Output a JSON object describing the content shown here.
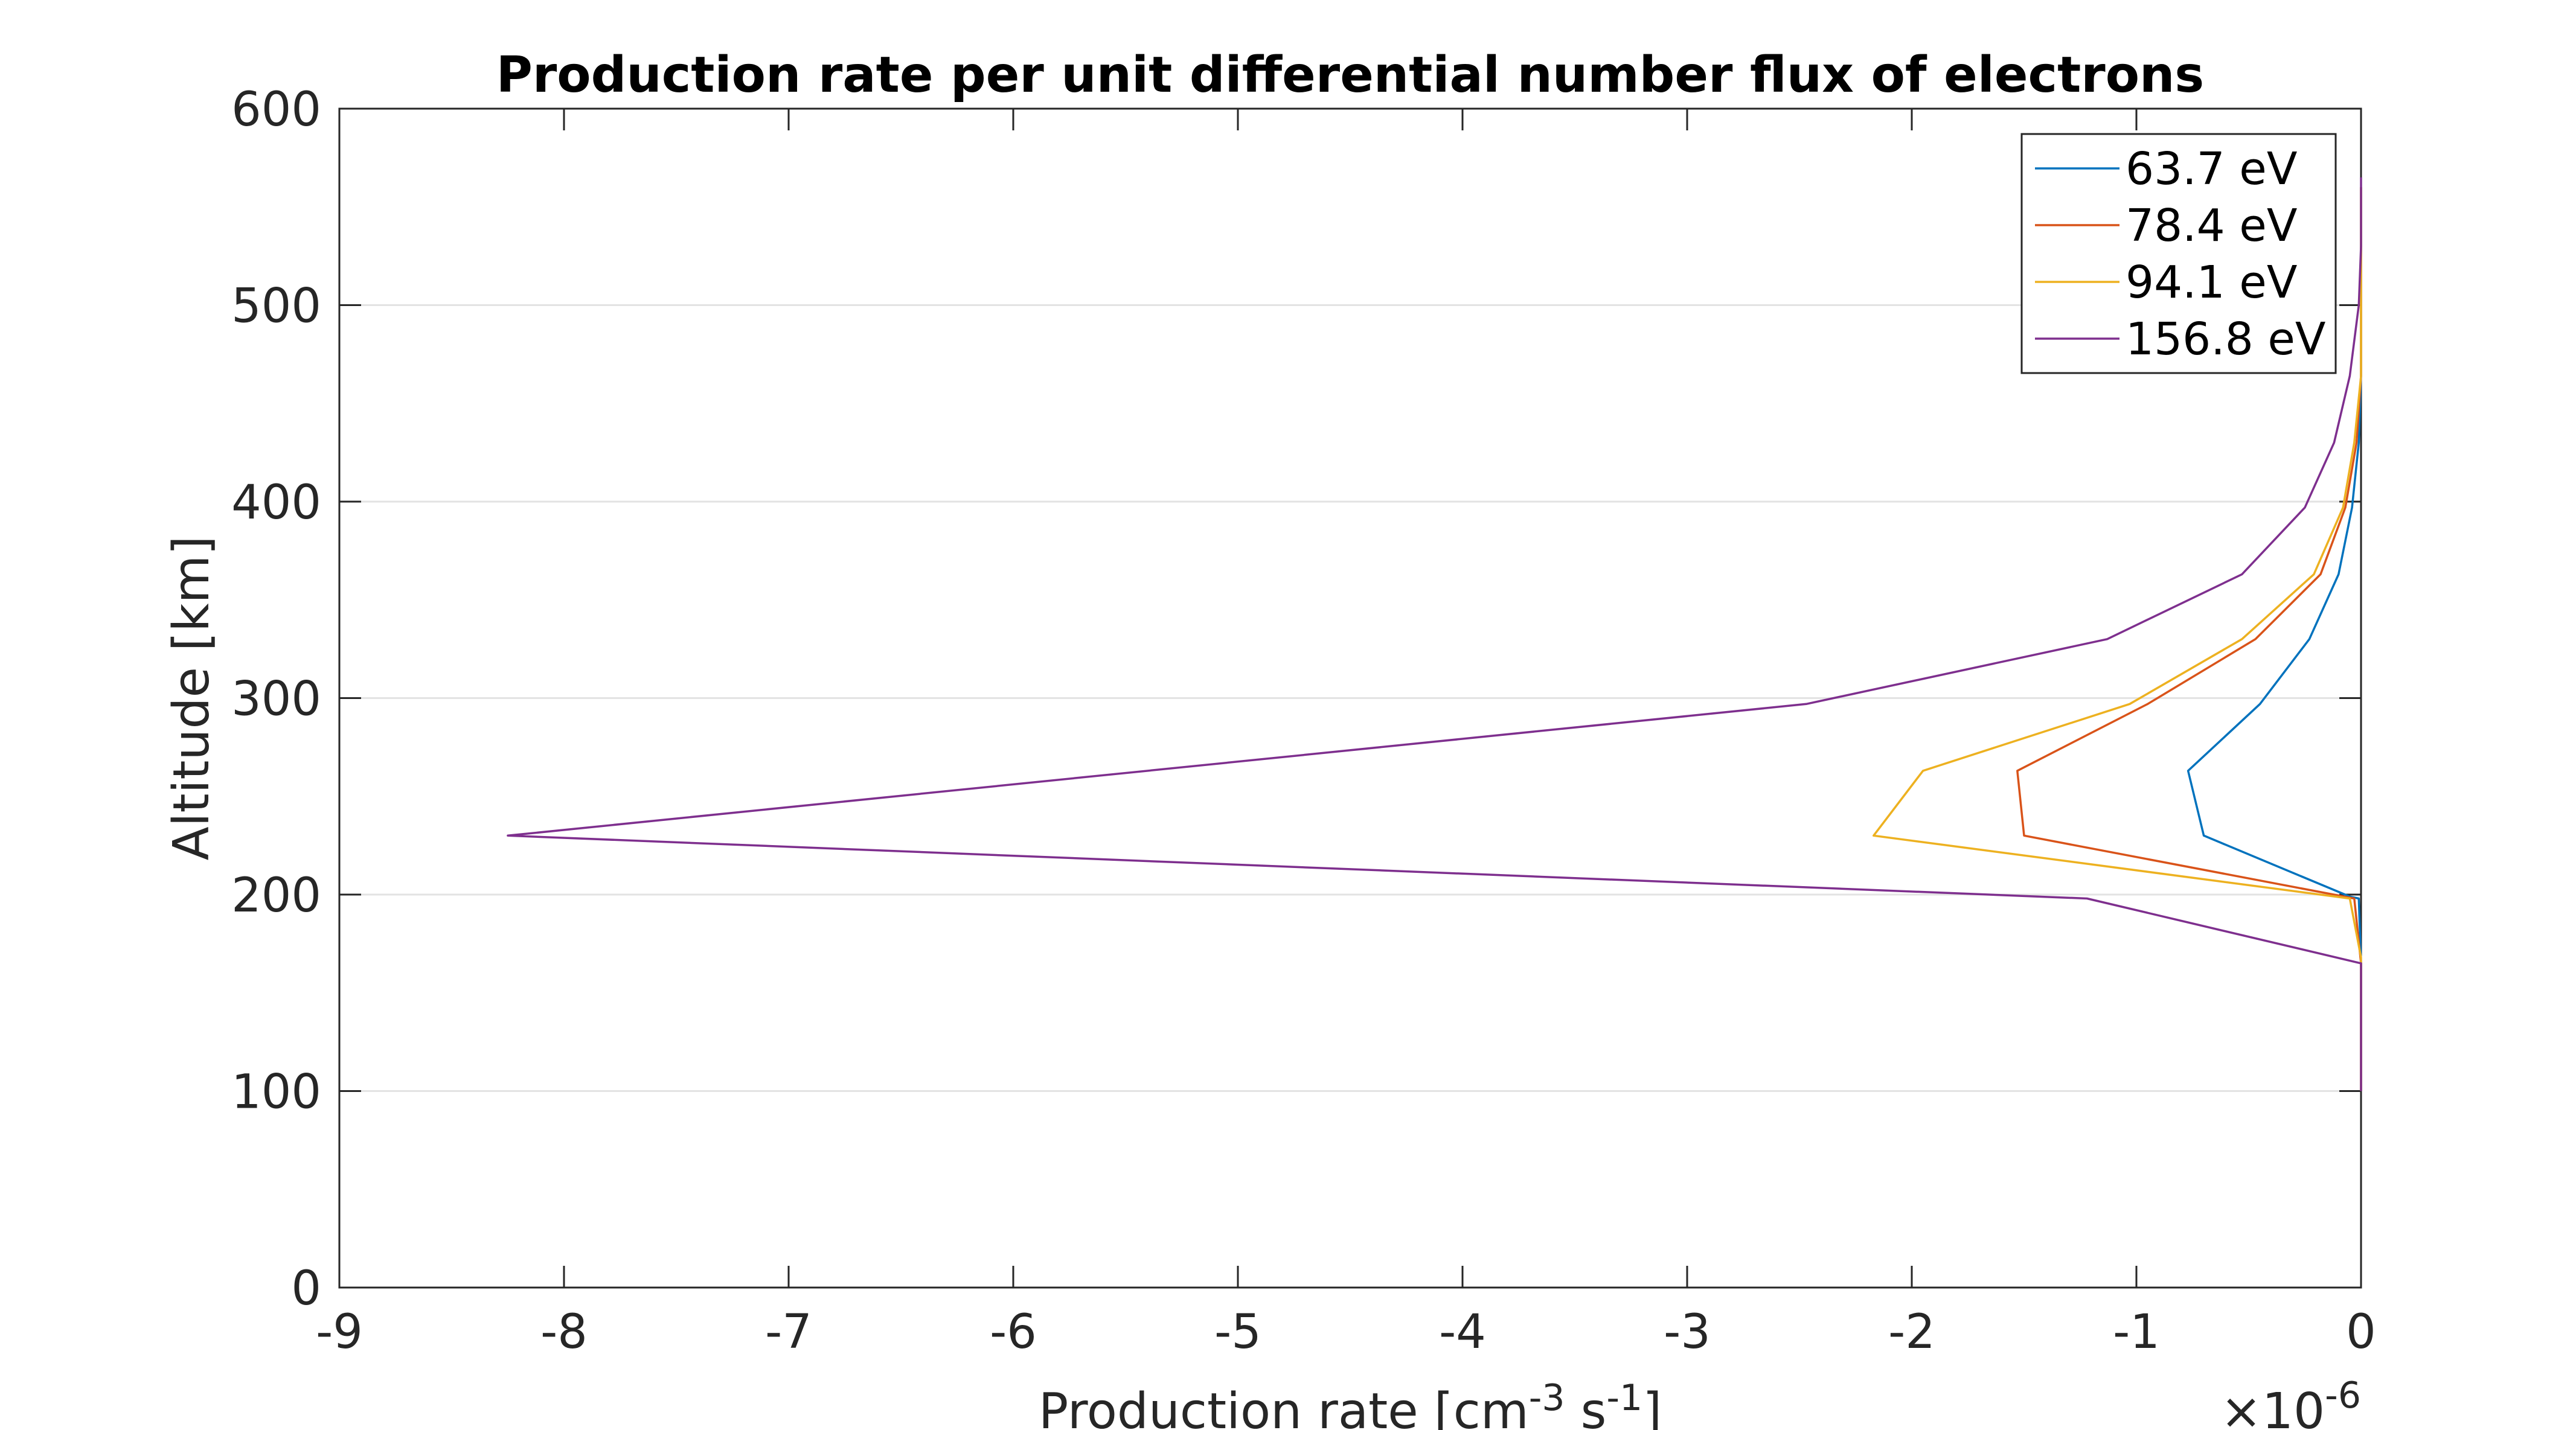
{
  "chart_data": {
    "type": "line",
    "title": "Production rate per unit differential number flux of electrons",
    "xlabel": "Production rate [cm",
    "xlabel_exp1": "-3",
    "xlabel_mid": " s",
    "xlabel_exp2": "-1",
    "xlabel_end": "]",
    "ylabel": "Altitude [km]",
    "x_multiplier": "×10",
    "x_multiplier_exp": "-6",
    "xlim": [
      -9,
      0
    ],
    "ylim": [
      0,
      600
    ],
    "xticks": [
      -9,
      -8,
      -7,
      -6,
      -5,
      -4,
      -3,
      -2,
      -1,
      0
    ],
    "xtick_labels": [
      "-9",
      "-8",
      "-7",
      "-6",
      "-5",
      "-4",
      "-3",
      "-2",
      "-1",
      "0"
    ],
    "yticks": [
      0,
      100,
      200,
      300,
      400,
      500,
      600
    ],
    "ytick_labels": [
      "0",
      "100",
      "200",
      "300",
      "400",
      "500",
      "600"
    ],
    "grid": "y-major",
    "legend_position": "top-right",
    "series": [
      {
        "name": "63.7 eV",
        "color": "#0072BD",
        "x": [
          0,
          0,
          -0.01,
          -0.05,
          -0.7,
          -0.77,
          -0.45,
          -0.23,
          -0.1,
          -0.04,
          -0.01,
          0,
          0,
          0
        ],
        "y": [
          100,
          165,
          198,
          199,
          230,
          263,
          297,
          330,
          363,
          397,
          430,
          464,
          500,
          560
        ]
      },
      {
        "name": "78.4 eV",
        "color": "#D95319",
        "x": [
          0,
          0,
          -0.03,
          -1.5,
          -1.53,
          -0.95,
          -0.47,
          -0.18,
          -0.07,
          -0.02,
          0,
          0,
          0
        ],
        "y": [
          100,
          165,
          198,
          230,
          263,
          297,
          330,
          363,
          397,
          430,
          464,
          500,
          560
        ]
      },
      {
        "name": "94.1 eV",
        "color": "#EDB120",
        "x": [
          0,
          0,
          -0.05,
          -2.17,
          -1.95,
          -1.03,
          -0.53,
          -0.21,
          -0.08,
          -0.03,
          0,
          0,
          0
        ],
        "y": [
          100,
          168,
          198,
          230,
          263,
          297,
          330,
          363,
          397,
          430,
          464,
          500,
          560
        ]
      },
      {
        "name": "156.8 eV",
        "color": "#7E2F8E",
        "x": [
          0,
          0,
          -1.22,
          -8.25,
          -2.47,
          -1.13,
          -0.53,
          -0.25,
          -0.12,
          -0.05,
          -0.01,
          0,
          0
        ],
        "y": [
          100,
          165,
          198,
          230,
          297,
          330,
          363,
          397,
          430,
          464,
          500,
          530,
          565
        ]
      }
    ]
  }
}
